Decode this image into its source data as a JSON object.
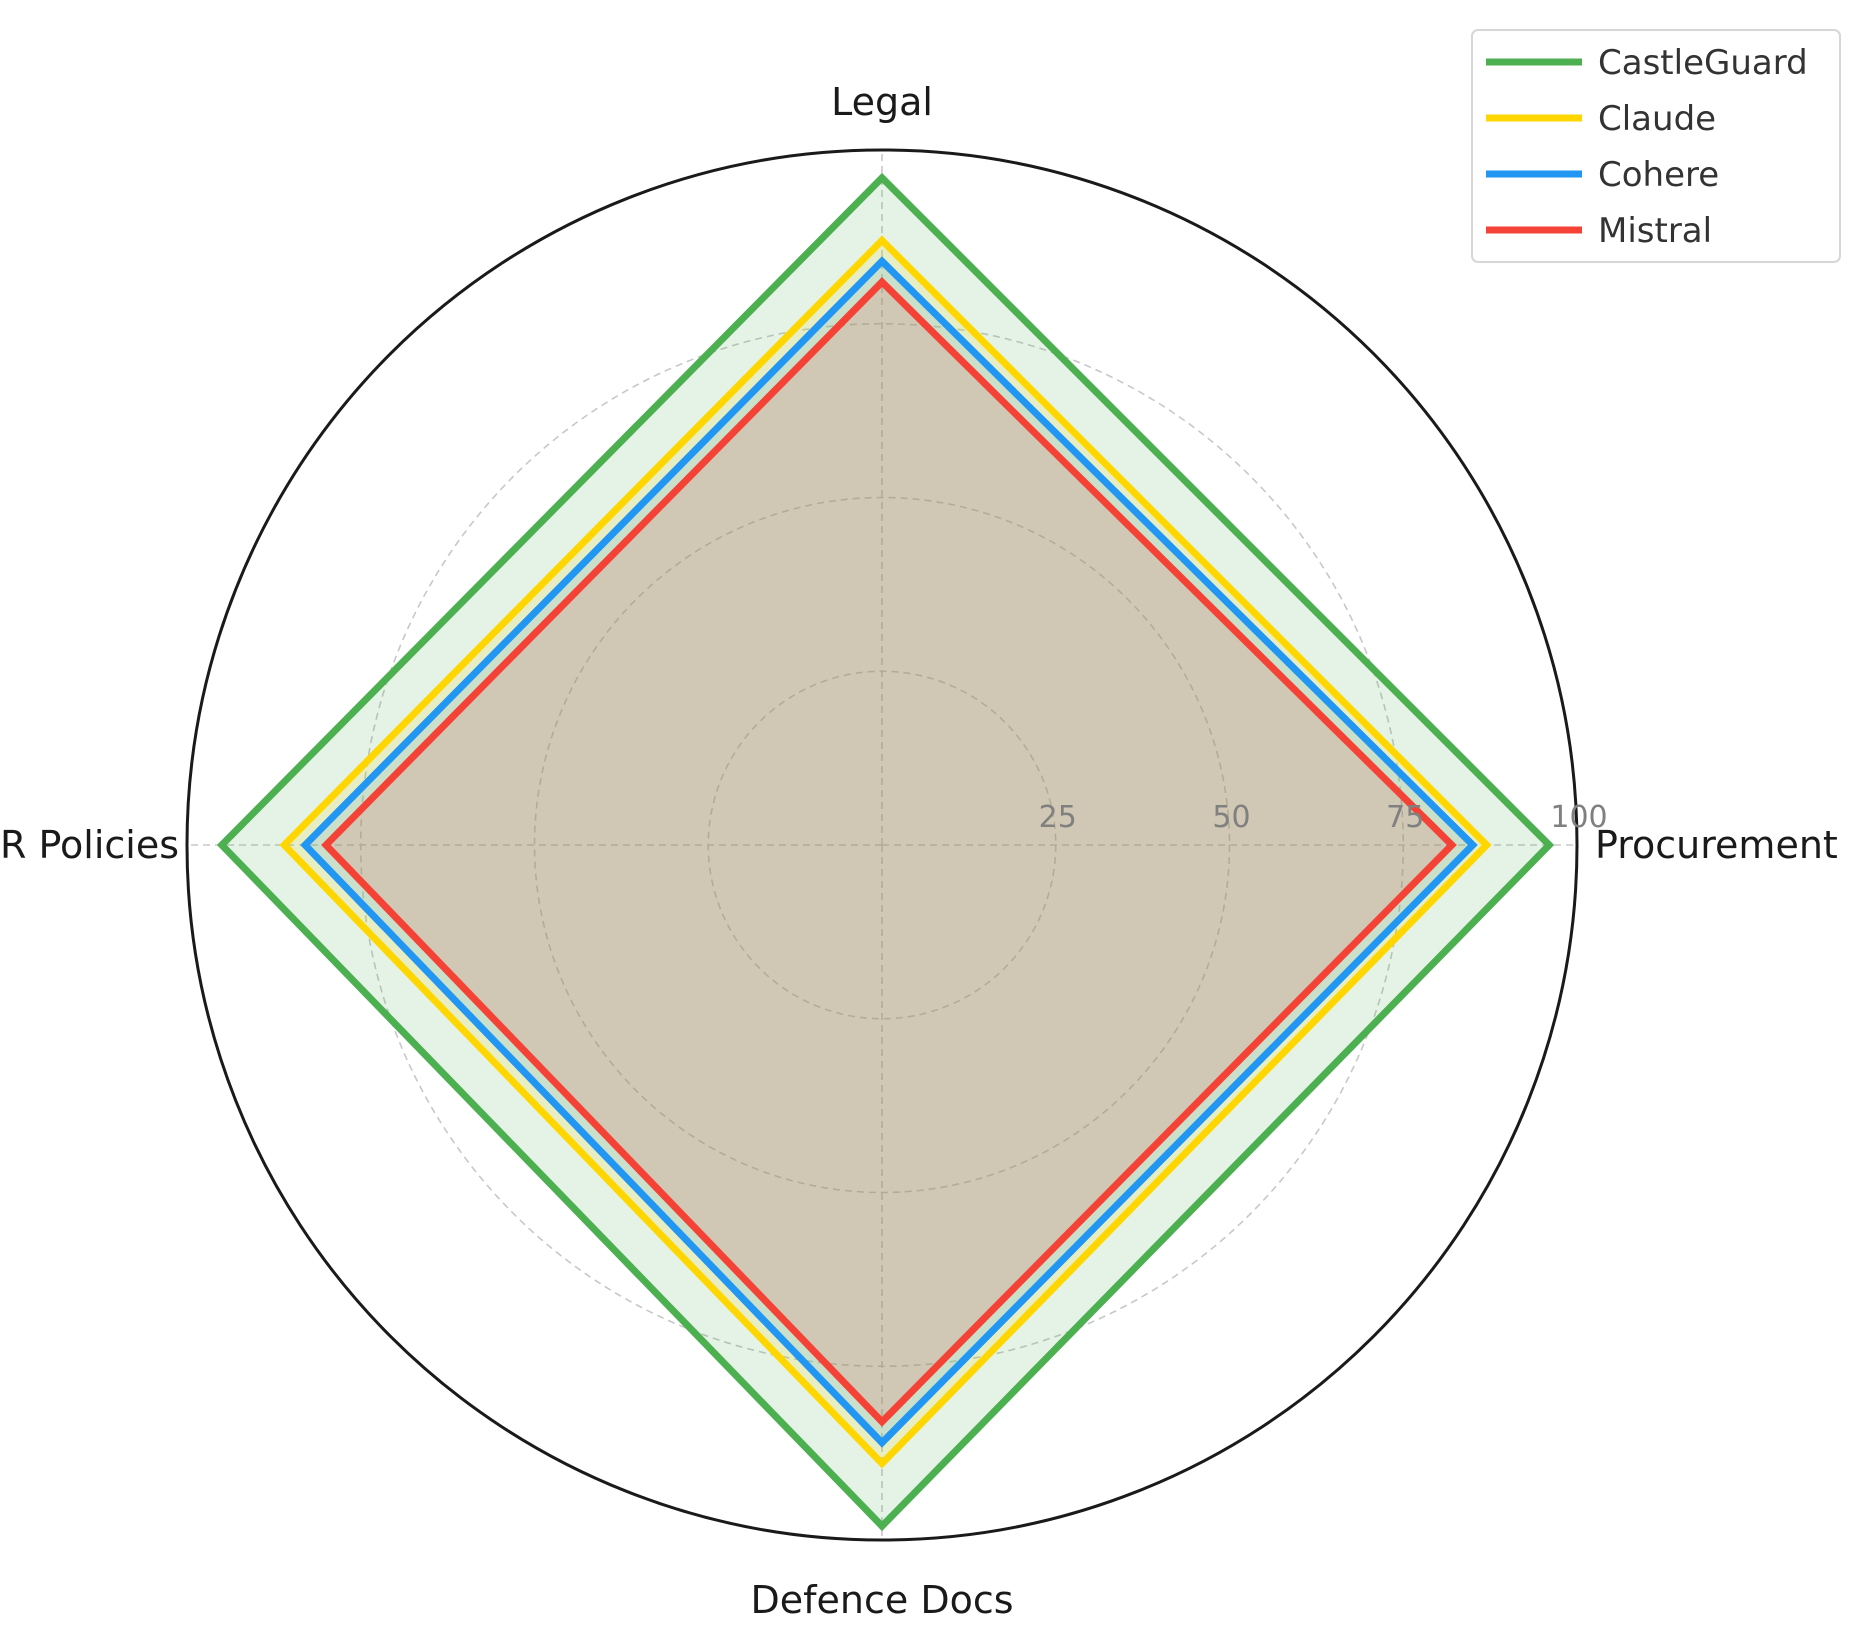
{
  "chart_data": {
    "type": "radar",
    "categories": [
      "Procurement",
      "Legal",
      "HR Policies",
      "Defence Docs"
    ],
    "radial_ticks": [
      25,
      50,
      75,
      100
    ],
    "tick_labels": [
      "25",
      "50",
      "75",
      "100"
    ],
    "rlim": [
      0,
      100
    ],
    "grid": true,
    "legend_position": "top-right",
    "series": [
      {
        "name": "CastleGuard",
        "color": "#4caf50",
        "fill": "#4caf50",
        "values": [
          96,
          96,
          95,
          98
        ]
      },
      {
        "name": "Claude",
        "color": "#ffd600",
        "fill": "#ffd600",
        "values": [
          87,
          87,
          86,
          89
        ]
      },
      {
        "name": "Cohere",
        "color": "#2196f3",
        "fill": "#2196f3",
        "values": [
          85,
          84,
          83,
          86
        ]
      },
      {
        "name": "Mistral",
        "color": "#f44336",
        "fill": "#f44336",
        "values": [
          82,
          81,
          80,
          83
        ]
      }
    ]
  }
}
